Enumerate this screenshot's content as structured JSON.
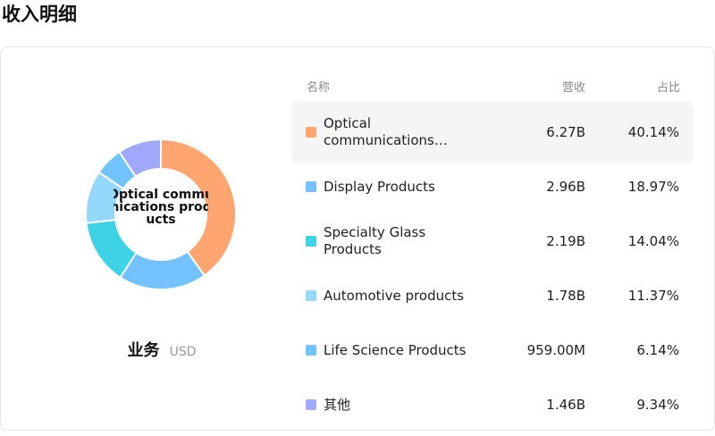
{
  "page": {
    "title": "收入明细"
  },
  "donut": {
    "center_text": "Optical communications products"
  },
  "caption": {
    "label": "业务",
    "unit": "USD"
  },
  "table": {
    "headers": {
      "name": "名称",
      "revenue": "营收",
      "share": "占比"
    },
    "rows": [
      {
        "name": "Optical communications…",
        "revenue": "6.27B",
        "share": "40.14%",
        "share_value": 40.14,
        "color": "#ffa56f"
      },
      {
        "name": "Display Products",
        "revenue": "2.96B",
        "share": "18.97%",
        "share_value": 18.97,
        "color": "#73c1ff"
      },
      {
        "name": "Specialty Glass Products",
        "revenue": "2.19B",
        "share": "14.04%",
        "share_value": 14.04,
        "color": "#3ed2e6"
      },
      {
        "name": "Automotive products",
        "revenue": "1.78B",
        "share": "11.37%",
        "share_value": 11.37,
        "color": "#94d8fc"
      },
      {
        "name": "Life Science Products",
        "revenue": "959.00M",
        "share": "6.14%",
        "share_value": 6.14,
        "color": "#71c3fb"
      },
      {
        "name": "其他",
        "revenue": "1.46B",
        "share": "9.34%",
        "share_value": 9.34,
        "color": "#a0a8fb"
      }
    ]
  }
}
